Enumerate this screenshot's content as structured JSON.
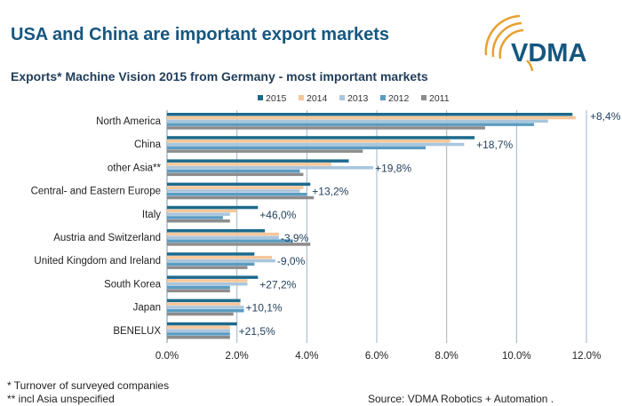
{
  "header": {
    "title": "USA and China are important export markets",
    "subtitle": "Exports* Machine Vision 2015 from Germany - most important markets",
    "logo_text": "VDMA"
  },
  "footer": {
    "note1": "* Turnover of surveyed companies",
    "note2": "** incl Asia unspecified",
    "source": "Source: VDMA Robotics + Automation ."
  },
  "chart_data": {
    "type": "bar",
    "orientation": "horizontal",
    "categories": [
      "North America",
      "China",
      "other Asia**",
      "Central- and Eastern Europe",
      "Italy",
      "Austria and Switzerland",
      "United Kingdom and Ireland",
      "South Korea",
      "Japan",
      "BENELUX"
    ],
    "series": [
      {
        "name": "2015",
        "color": "#1d6a8c",
        "values": [
          11.6,
          8.8,
          5.2,
          4.1,
          2.6,
          2.8,
          2.5,
          2.6,
          2.1,
          2.0
        ]
      },
      {
        "name": "2014",
        "color": "#f6c79b",
        "values": [
          11.7,
          8.1,
          4.7,
          3.9,
          2.0,
          3.2,
          3.0,
          2.3,
          2.1,
          1.8
        ]
      },
      {
        "name": "2013",
        "color": "#a9c6de",
        "values": [
          10.9,
          8.5,
          5.9,
          3.8,
          1.8,
          3.2,
          3.1,
          2.3,
          2.2,
          1.8
        ]
      },
      {
        "name": "2012",
        "color": "#5b9cc2",
        "values": [
          10.5,
          7.4,
          3.8,
          4.0,
          1.6,
          3.6,
          2.5,
          1.8,
          2.2,
          1.8
        ]
      },
      {
        "name": "2011",
        "color": "#8c8c8c",
        "values": [
          9.1,
          5.6,
          3.9,
          4.2,
          1.8,
          4.1,
          2.3,
          1.8,
          1.9,
          1.8
        ]
      }
    ],
    "growth_labels": [
      "+8,4%",
      "+18,7%",
      "+19,8%",
      "+13,2%",
      "+46,0%",
      "-3,9%",
      "-9,0%",
      "+27,2%",
      "+10,1%",
      "+21,5%"
    ],
    "xlim": [
      0,
      12
    ],
    "xticks": [
      "0.0%",
      "2.0%",
      "4.0%",
      "6.0%",
      "8.0%",
      "10.0%",
      "12.0%"
    ],
    "grid": true,
    "legend": "top",
    "xlabel": "",
    "ylabel": ""
  }
}
